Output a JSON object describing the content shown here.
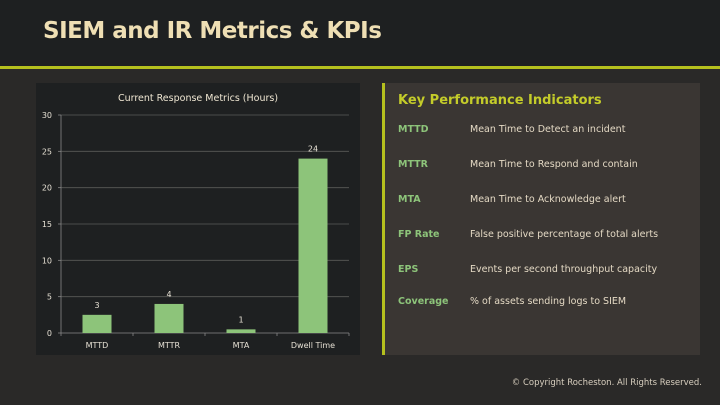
{
  "header": {
    "title": "SIEM and IR Metrics & KPIs"
  },
  "chart_data": {
    "type": "bar",
    "title": "Current Response Metrics (Hours)",
    "categories": [
      "MTTD",
      "MTTR",
      "MTA",
      "Dwell Time"
    ],
    "values": [
      2.5,
      4,
      0.5,
      24
    ],
    "data_labels": [
      "3",
      "4",
      "1",
      "24"
    ],
    "xlabel": "",
    "ylabel": "",
    "ylim": [
      0,
      30
    ],
    "yticks": [
      "0",
      "5",
      "10",
      "15",
      "20",
      "25",
      "30"
    ],
    "grid": true,
    "bar_color": "#8dc47a"
  },
  "kpi": {
    "title": "Key Performance Indicators",
    "items": [
      {
        "abbr": "MTTD",
        "desc": "Mean Time to Detect an incident"
      },
      {
        "abbr": "MTTR",
        "desc": "Mean Time to Respond and contain"
      },
      {
        "abbr": "MTA",
        "desc": "Mean Time to Acknowledge alert"
      },
      {
        "abbr": "FP Rate",
        "desc": "False positive percentage of total alerts"
      },
      {
        "abbr": "EPS",
        "desc": "Events per second throughput capacity"
      },
      {
        "abbr": "Coverage",
        "desc": "% of assets sending logs to SIEM"
      }
    ]
  },
  "footer": {
    "copyright": "© Copyright Rocheston. All Rights Reserved."
  }
}
